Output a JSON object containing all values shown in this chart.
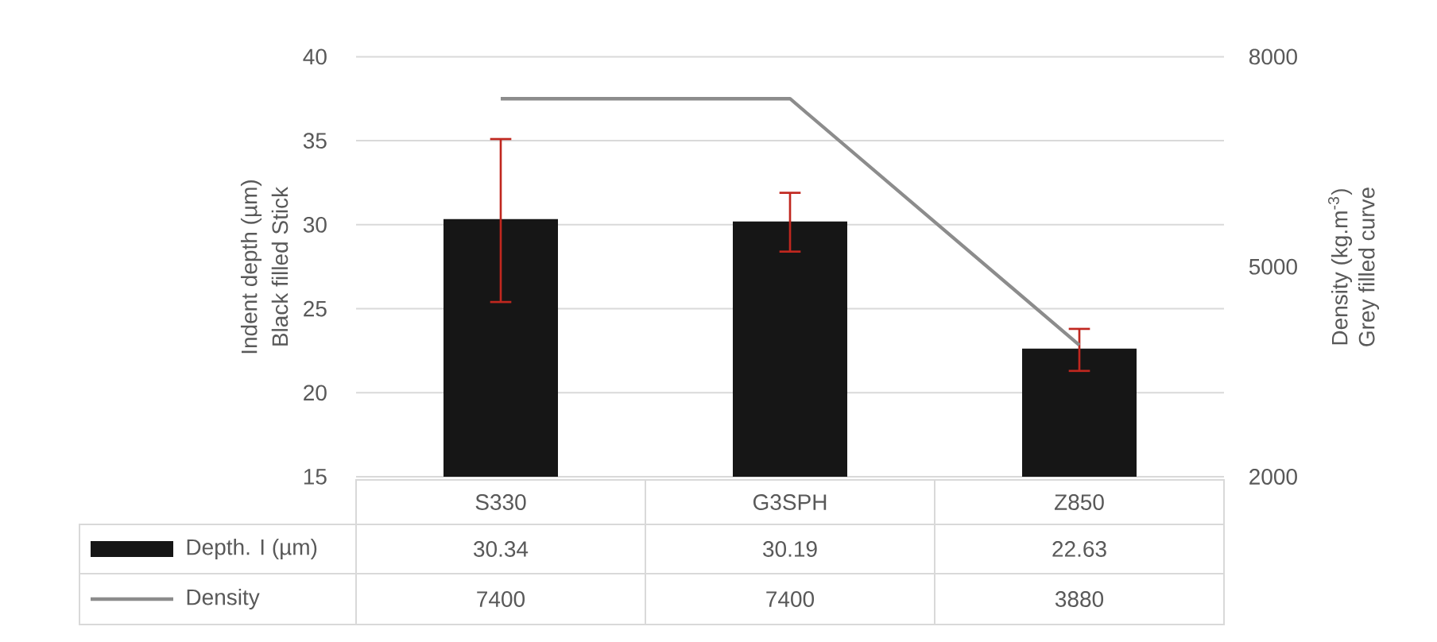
{
  "chart_data": {
    "type": "bar",
    "categories": [
      "S330",
      "G3SPH",
      "Z850"
    ],
    "ylabel": "Indent depth (µm)",
    "y2label": "Density (kg.m$^{-3}$)",
    "annotations": [
      "Black filled Stick",
      "Grey filled curve"
    ],
    "series": [
      {
        "name": "Depth. I (µm)",
        "color": "#161616",
        "values": [
          30.34,
          30.19,
          22.63
        ],
        "errors": [
          [
            25.4,
            35.1
          ],
          [
            28.4,
            31.9
          ],
          [
            21.3,
            23.8
          ]
        ]
      },
      {
        "name": "Density",
        "type": "line",
        "axis": "y2",
        "color": "#8c8c8c",
        "values": [
          7400,
          7400,
          3880
        ]
      }
    ],
    "ylim": [
      15,
      40
    ],
    "yticks": [
      15,
      20,
      25,
      30,
      35,
      40
    ],
    "y2lim": [
      2000,
      8000
    ],
    "y2ticks": [
      2000,
      5000,
      8000
    ],
    "grid": "y",
    "legend": "bottom",
    "data_labels": true
  }
}
